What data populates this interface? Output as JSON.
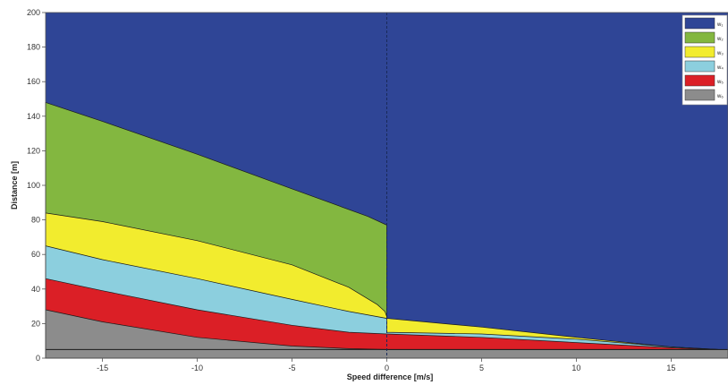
{
  "chart_data": {
    "type": "area",
    "title": "",
    "xlabel": "Speed difference [m/s]",
    "ylabel": "Distance [m]",
    "xlim": [
      -18,
      18
    ],
    "ylim": [
      0,
      200
    ],
    "x_ticks": [
      -15,
      -10,
      -5,
      0,
      5,
      10,
      15
    ],
    "y_ticks": [
      0,
      20,
      40,
      60,
      80,
      100,
      120,
      140,
      160,
      180,
      200
    ],
    "grid": false,
    "legend_position": "top-right",
    "baseline_y": 5,
    "series": [
      {
        "name": "w₁",
        "color": "#2f4596",
        "points": [
          [
            -18,
            200
          ],
          [
            18,
            200
          ]
        ]
      },
      {
        "name": "w₂",
        "color": "#83b740",
        "points": [
          [
            -18,
            148
          ],
          [
            -15,
            137
          ],
          [
            -10,
            118
          ],
          [
            -5,
            98
          ],
          [
            -1,
            82
          ],
          [
            0,
            77
          ],
          [
            0,
            0
          ]
        ]
      },
      {
        "name": "w₃",
        "color": "#f2ec2e",
        "points": [
          [
            -18,
            84
          ],
          [
            -15,
            79
          ],
          [
            -10,
            68
          ],
          [
            -5,
            54
          ],
          [
            -2,
            41
          ],
          [
            -0.5,
            31
          ],
          [
            -0.1,
            27
          ],
          [
            0,
            24
          ],
          [
            0,
            23
          ],
          [
            5,
            18
          ],
          [
            10,
            12
          ],
          [
            15,
            6.5
          ],
          [
            17.5,
            5
          ],
          [
            18,
            5
          ]
        ]
      },
      {
        "name": "w₄",
        "color": "#8ccfde",
        "points": [
          [
            -18,
            65
          ],
          [
            -15,
            57
          ],
          [
            -10,
            46
          ],
          [
            -5,
            34
          ],
          [
            -2,
            27
          ],
          [
            0,
            23
          ],
          [
            0,
            15
          ],
          [
            5,
            14
          ],
          [
            10,
            11
          ],
          [
            15,
            6.5
          ],
          [
            17.5,
            5
          ],
          [
            18,
            5
          ]
        ]
      },
      {
        "name": "w₅",
        "color": "#db1f26",
        "points": [
          [
            -18,
            46
          ],
          [
            -15,
            39
          ],
          [
            -10,
            28
          ],
          [
            -5,
            19
          ],
          [
            -2,
            15
          ],
          [
            0,
            14
          ],
          [
            0,
            14
          ],
          [
            5,
            12
          ],
          [
            10,
            9
          ],
          [
            15,
            6
          ],
          [
            17.5,
            5
          ],
          [
            18,
            5
          ]
        ]
      },
      {
        "name": "w₆",
        "color": "#8c8c8c",
        "points": [
          [
            -18,
            28
          ],
          [
            -15,
            21
          ],
          [
            -10,
            12
          ],
          [
            -5,
            7
          ],
          [
            -2,
            5.5
          ],
          [
            0,
            5
          ],
          [
            0,
            5
          ],
          [
            18,
            5
          ]
        ]
      }
    ]
  }
}
